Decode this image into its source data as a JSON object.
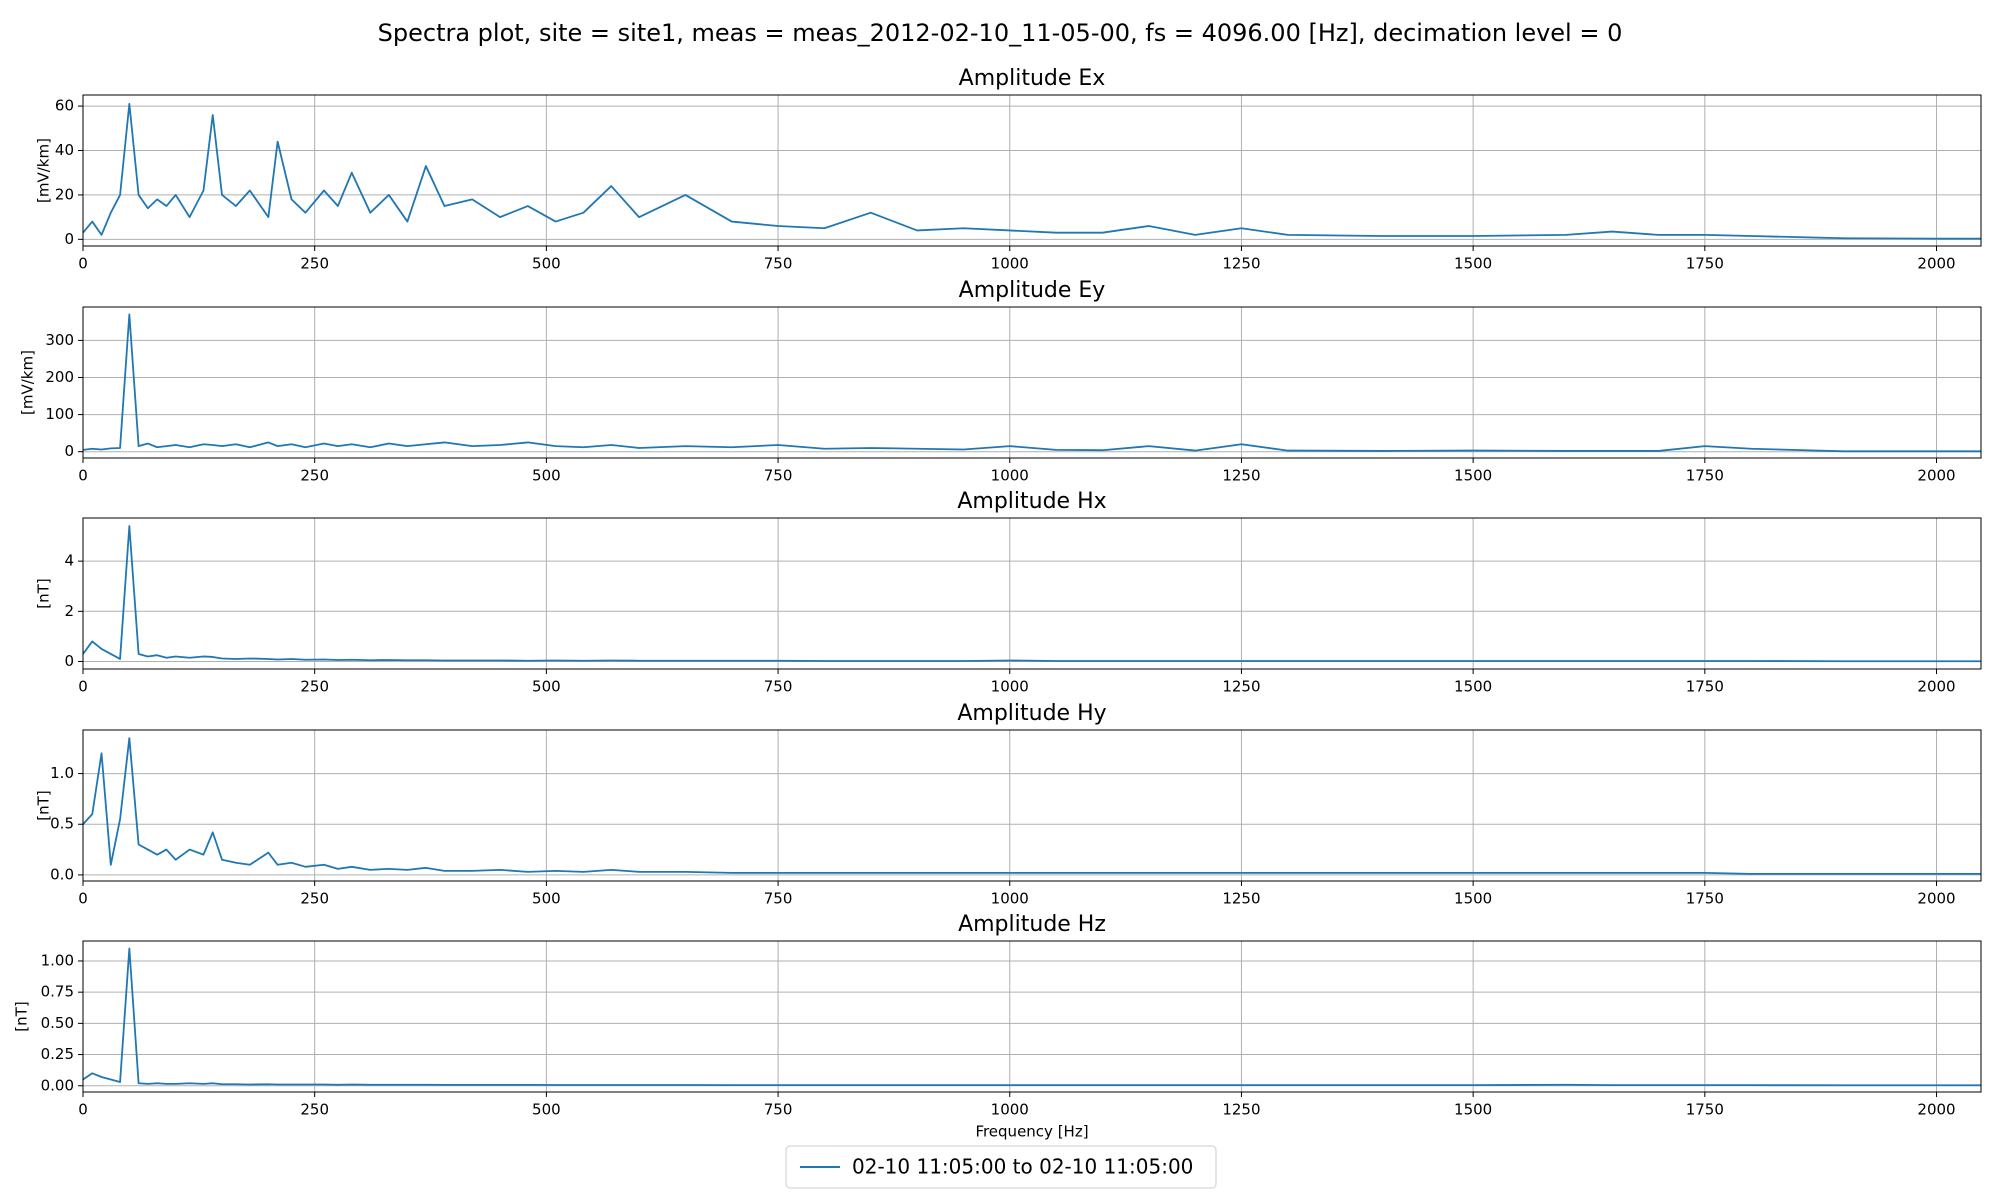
{
  "title": "Spectra plot, site = site1, meas = meas_2012-02-10_11-05-00, fs = 4096.00 [Hz], decimation level =  0",
  "legend": {
    "label": "02-10 11:05:00 to 02-10 11:05:00",
    "color": "#1f77b4"
  },
  "chart_data": [
    {
      "type": "line",
      "title": "Amplitude Ex",
      "ylabel": "[mV/km]",
      "color": "#1f77b4",
      "grid": true,
      "x": [
        0,
        10,
        20,
        30,
        40,
        50,
        60,
        70,
        80,
        90,
        100,
        115,
        130,
        140,
        150,
        165,
        180,
        200,
        210,
        225,
        240,
        260,
        275,
        290,
        310,
        330,
        350,
        370,
        390,
        420,
        450,
        480,
        510,
        540,
        570,
        600,
        650,
        700,
        750,
        800,
        850,
        900,
        950,
        1000,
        1050,
        1100,
        1150,
        1200,
        1250,
        1300,
        1400,
        1500,
        1600,
        1650,
        1700,
        1750,
        1800,
        1900,
        2000,
        2048
      ],
      "values": [
        3,
        8,
        2,
        12,
        20,
        61,
        20,
        14,
        18,
        15,
        20,
        10,
        22,
        56,
        20,
        15,
        22,
        10,
        44,
        18,
        12,
        22,
        15,
        30,
        12,
        20,
        8,
        33,
        15,
        18,
        10,
        15,
        8,
        12,
        24,
        10,
        20,
        8,
        6,
        5,
        12,
        4,
        5,
        4,
        3,
        3,
        6,
        2,
        5,
        2,
        1.5,
        1.5,
        2,
        3.5,
        2,
        2,
        1.5,
        0.5,
        0.3,
        0.3
      ],
      "xlim": [
        0,
        2048
      ],
      "xticks": [
        0,
        250,
        500,
        750,
        1000,
        1250,
        1500,
        1750,
        2000
      ],
      "ylim": [
        -3,
        65
      ],
      "yticks": [
        0,
        20,
        40,
        60
      ]
    },
    {
      "type": "line",
      "title": "Amplitude Ey",
      "ylabel": "[mV/km]",
      "color": "#1f77b4",
      "grid": true,
      "x": [
        0,
        10,
        20,
        30,
        40,
        50,
        60,
        70,
        80,
        90,
        100,
        115,
        130,
        140,
        150,
        165,
        180,
        200,
        210,
        225,
        240,
        260,
        275,
        290,
        310,
        330,
        350,
        370,
        390,
        420,
        450,
        480,
        510,
        540,
        570,
        600,
        650,
        700,
        750,
        800,
        850,
        900,
        950,
        1000,
        1050,
        1100,
        1150,
        1200,
        1250,
        1300,
        1400,
        1500,
        1600,
        1650,
        1700,
        1750,
        1800,
        1900,
        2000,
        2048
      ],
      "values": [
        5,
        8,
        6,
        9,
        10,
        370,
        15,
        22,
        12,
        15,
        18,
        12,
        20,
        18,
        15,
        20,
        12,
        25,
        15,
        20,
        12,
        22,
        15,
        20,
        12,
        22,
        15,
        20,
        25,
        15,
        18,
        25,
        15,
        12,
        18,
        10,
        15,
        12,
        18,
        8,
        10,
        8,
        6,
        15,
        5,
        4,
        15,
        3,
        20,
        3,
        2,
        3,
        2,
        2,
        2,
        15,
        8,
        1,
        1,
        1
      ],
      "xlim": [
        0,
        2048
      ],
      "xticks": [
        0,
        250,
        500,
        750,
        1000,
        1250,
        1500,
        1750,
        2000
      ],
      "ylim": [
        -17,
        390
      ],
      "yticks": [
        0,
        100,
        200,
        300
      ]
    },
    {
      "type": "line",
      "title": "Amplitude Hx",
      "ylabel": "[nT]",
      "color": "#1f77b4",
      "grid": true,
      "x": [
        0,
        10,
        20,
        30,
        40,
        50,
        60,
        70,
        80,
        90,
        100,
        115,
        130,
        140,
        150,
        165,
        180,
        200,
        210,
        225,
        240,
        260,
        275,
        290,
        310,
        330,
        350,
        370,
        390,
        420,
        450,
        480,
        510,
        540,
        570,
        600,
        650,
        700,
        750,
        800,
        850,
        900,
        950,
        1000,
        1050,
        1100,
        1150,
        1200,
        1250,
        1300,
        1400,
        1500,
        1600,
        1650,
        1700,
        1750,
        1800,
        1900,
        2000,
        2048
      ],
      "values": [
        0.3,
        0.8,
        0.5,
        0.3,
        0.1,
        5.4,
        0.3,
        0.2,
        0.25,
        0.15,
        0.2,
        0.15,
        0.2,
        0.18,
        0.12,
        0.1,
        0.12,
        0.1,
        0.08,
        0.1,
        0.07,
        0.08,
        0.06,
        0.07,
        0.05,
        0.06,
        0.05,
        0.05,
        0.04,
        0.04,
        0.04,
        0.03,
        0.04,
        0.03,
        0.04,
        0.03,
        0.03,
        0.03,
        0.03,
        0.02,
        0.02,
        0.02,
        0.02,
        0.04,
        0.02,
        0.02,
        0.02,
        0.02,
        0.02,
        0.02,
        0.02,
        0.02,
        0.02,
        0.02,
        0.02,
        0.02,
        0.02,
        0.01,
        0.01,
        0.01
      ],
      "xlim": [
        0,
        2048
      ],
      "xticks": [
        0,
        250,
        500,
        750,
        1000,
        1250,
        1500,
        1750,
        2000
      ],
      "ylim": [
        -0.3,
        5.72
      ],
      "yticks": [
        0,
        2,
        4
      ]
    },
    {
      "type": "line",
      "title": "Amplitude Hy",
      "ylabel": "[nT]",
      "color": "#1f77b4",
      "grid": true,
      "x": [
        0,
        10,
        20,
        30,
        40,
        50,
        60,
        70,
        80,
        90,
        100,
        115,
        130,
        140,
        150,
        165,
        180,
        200,
        210,
        225,
        240,
        260,
        275,
        290,
        310,
        330,
        350,
        370,
        390,
        420,
        450,
        480,
        510,
        540,
        570,
        600,
        650,
        700,
        750,
        800,
        850,
        900,
        950,
        1000,
        1050,
        1100,
        1150,
        1200,
        1250,
        1300,
        1400,
        1500,
        1600,
        1650,
        1700,
        1750,
        1800,
        1900,
        2000,
        2048
      ],
      "values": [
        0.5,
        0.6,
        1.2,
        0.1,
        0.55,
        1.35,
        0.3,
        0.25,
        0.2,
        0.25,
        0.15,
        0.25,
        0.2,
        0.42,
        0.15,
        0.12,
        0.1,
        0.22,
        0.1,
        0.12,
        0.08,
        0.1,
        0.06,
        0.08,
        0.05,
        0.06,
        0.05,
        0.07,
        0.04,
        0.04,
        0.05,
        0.03,
        0.04,
        0.03,
        0.05,
        0.03,
        0.03,
        0.02,
        0.02,
        0.02,
        0.02,
        0.02,
        0.02,
        0.02,
        0.02,
        0.02,
        0.02,
        0.02,
        0.02,
        0.02,
        0.02,
        0.02,
        0.02,
        0.02,
        0.02,
        0.02,
        0.01,
        0.01,
        0.01,
        0.01
      ],
      "xlim": [
        0,
        2048
      ],
      "xticks": [
        0,
        250,
        500,
        750,
        1000,
        1250,
        1500,
        1750,
        2000
      ],
      "ylim": [
        -0.06,
        1.43
      ],
      "yticks": [
        {
          "value": 0,
          "label": "0.0"
        },
        {
          "value": 0.5,
          "label": "0.5"
        },
        {
          "value": 1,
          "label": "1.0"
        }
      ]
    },
    {
      "type": "line",
      "title": "Amplitude Hz",
      "ylabel": "[nT]",
      "xlabel": "Frequency [Hz]",
      "color": "#1f77b4",
      "grid": true,
      "x": [
        0,
        10,
        20,
        30,
        40,
        50,
        60,
        70,
        80,
        90,
        100,
        115,
        130,
        140,
        150,
        165,
        180,
        200,
        210,
        225,
        240,
        260,
        275,
        290,
        310,
        330,
        350,
        370,
        390,
        420,
        450,
        480,
        510,
        540,
        570,
        600,
        650,
        700,
        750,
        800,
        850,
        900,
        950,
        1000,
        1050,
        1100,
        1150,
        1200,
        1250,
        1300,
        1400,
        1500,
        1600,
        1650,
        1700,
        1750,
        1800,
        1900,
        2000,
        2048
      ],
      "values": [
        0.05,
        0.1,
        0.07,
        0.05,
        0.03,
        1.1,
        0.02,
        0.015,
        0.02,
        0.015,
        0.015,
        0.02,
        0.015,
        0.02,
        0.012,
        0.012,
        0.01,
        0.012,
        0.01,
        0.01,
        0.01,
        0.01,
        0.008,
        0.01,
        0.008,
        0.008,
        0.008,
        0.008,
        0.007,
        0.007,
        0.007,
        0.007,
        0.006,
        0.006,
        0.006,
        0.006,
        0.006,
        0.005,
        0.005,
        0.005,
        0.005,
        0.005,
        0.005,
        0.005,
        0.005,
        0.005,
        0.005,
        0.005,
        0.005,
        0.005,
        0.005,
        0.005,
        0.008,
        0.005,
        0.005,
        0.005,
        0.005,
        0.004,
        0.004,
        0.004
      ],
      "xlim": [
        0,
        2048
      ],
      "xticks": [
        0,
        250,
        500,
        750,
        1000,
        1250,
        1500,
        1750,
        2000
      ],
      "ylim": [
        -0.05,
        1.16
      ],
      "yticks": [
        {
          "value": 0,
          "label": "0.00"
        },
        {
          "value": 0.25,
          "label": "0.25"
        },
        {
          "value": 0.5,
          "label": "0.50"
        },
        {
          "value": 0.75,
          "label": "0.75"
        },
        {
          "value": 1,
          "label": "1.00"
        }
      ]
    }
  ]
}
